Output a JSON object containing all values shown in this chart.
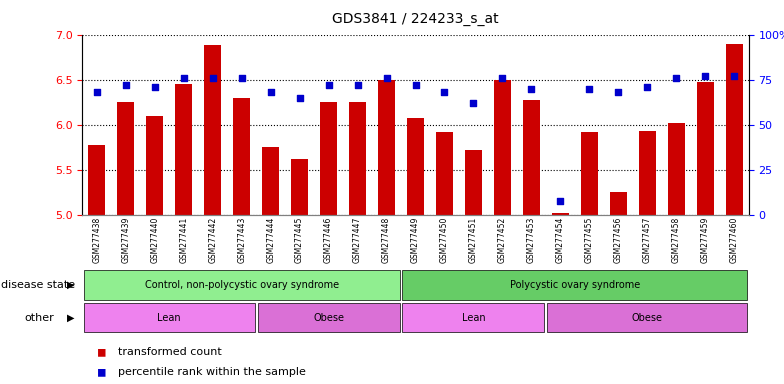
{
  "title": "GDS3841 / 224233_s_at",
  "samples": [
    "GSM277438",
    "GSM277439",
    "GSM277440",
    "GSM277441",
    "GSM277442",
    "GSM277443",
    "GSM277444",
    "GSM277445",
    "GSM277446",
    "GSM277447",
    "GSM277448",
    "GSM277449",
    "GSM277450",
    "GSM277451",
    "GSM277452",
    "GSM277453",
    "GSM277454",
    "GSM277455",
    "GSM277456",
    "GSM277457",
    "GSM277458",
    "GSM277459",
    "GSM277460"
  ],
  "transformed_count": [
    5.78,
    6.25,
    6.1,
    6.45,
    6.88,
    6.3,
    5.75,
    5.62,
    6.25,
    6.25,
    6.5,
    6.08,
    5.92,
    5.72,
    6.5,
    6.27,
    5.02,
    5.92,
    5.25,
    5.93,
    6.02,
    6.47,
    6.9
  ],
  "percentile_rank": [
    68,
    72,
    71,
    76,
    76,
    76,
    68,
    65,
    72,
    72,
    76,
    72,
    68,
    62,
    76,
    70,
    8,
    70,
    68,
    71,
    76,
    77,
    77
  ],
  "ylim_left": [
    5.0,
    7.0
  ],
  "ylim_right": [
    0,
    100
  ],
  "yticks_left": [
    5.0,
    5.5,
    6.0,
    6.5,
    7.0
  ],
  "yticks_right": [
    0,
    25,
    50,
    75,
    100
  ],
  "bar_color": "#cc0000",
  "dot_color": "#0000cc",
  "background_color": "#ffffff",
  "disease_state_groups": [
    {
      "label": "Control, non-polycystic ovary syndrome",
      "start": 0,
      "end": 11,
      "color": "#90ee90"
    },
    {
      "label": "Polycystic ovary syndrome",
      "start": 11,
      "end": 23,
      "color": "#66cc66"
    }
  ],
  "other_groups": [
    {
      "label": "Lean",
      "start": 0,
      "end": 6,
      "color": "#ee82ee"
    },
    {
      "label": "Obese",
      "start": 6,
      "end": 11,
      "color": "#da70d6"
    },
    {
      "label": "Lean",
      "start": 11,
      "end": 16,
      "color": "#ee82ee"
    },
    {
      "label": "Obese",
      "start": 16,
      "end": 23,
      "color": "#da70d6"
    }
  ],
  "legend_items": [
    {
      "label": "transformed count",
      "color": "#cc0000"
    },
    {
      "label": "percentile rank within the sample",
      "color": "#0000cc"
    }
  ]
}
